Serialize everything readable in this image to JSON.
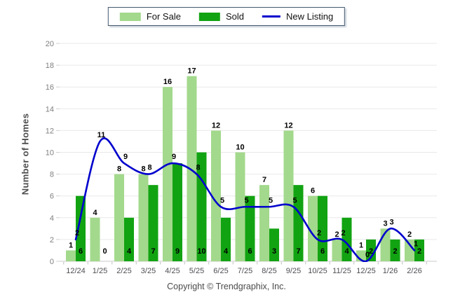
{
  "footer": {
    "text": "Copyright © Trendgraphix, Inc."
  },
  "chart_data": {
    "type": "bar",
    "title": "",
    "xlabel": "",
    "ylabel": "Number of Homes",
    "categories": [
      "12/24",
      "1/25",
      "2/25",
      "3/25",
      "4/25",
      "5/25",
      "6/25",
      "7/25",
      "8/25",
      "9/25",
      "10/25",
      "11/25",
      "12/25",
      "1/26",
      "2/26"
    ],
    "series": [
      {
        "name": "For Sale",
        "type": "bar",
        "color": "#a3d98c",
        "values": [
          1,
          4,
          8,
          8,
          16,
          17,
          12,
          10,
          7,
          12,
          6,
          2,
          1,
          3,
          2
        ]
      },
      {
        "name": "Sold",
        "type": "bar",
        "color": "#12a312",
        "values": [
          6,
          0,
          4,
          7,
          9,
          10,
          4,
          6,
          3,
          7,
          6,
          4,
          2,
          2,
          2
        ]
      },
      {
        "name": "New Listing",
        "type": "line",
        "color": "#0101cd",
        "values": [
          2,
          11,
          9,
          8,
          9,
          8,
          5,
          5,
          5,
          5,
          2,
          2,
          0,
          3,
          1
        ]
      }
    ],
    "ylim": [
      0,
      20
    ],
    "ytick_step": 2,
    "grid": true,
    "legend_position": "top-center",
    "value_labels": true,
    "colors": {
      "for_sale": "#a3d98c",
      "sold": "#12a312",
      "new_listing": "#0101cd",
      "gridline": "#e9e9e9",
      "axis_line": "#c9c9c9",
      "ytick_text": "#7f7f7f",
      "xtick_text": "#4f4f55",
      "value_label_text": "#000000"
    }
  }
}
